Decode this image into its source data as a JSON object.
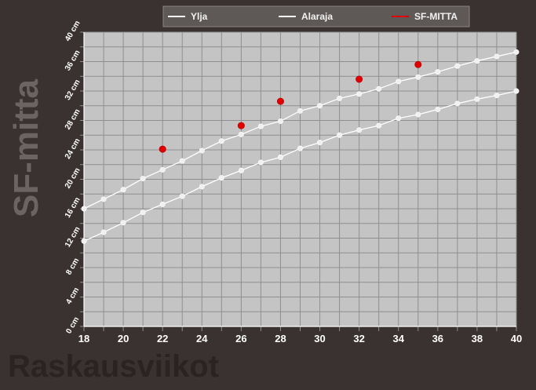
{
  "chart_data": {
    "type": "line",
    "ylabel": "SF-mitta",
    "xlabel": "Raskausviikot",
    "xlim": [
      18,
      40
    ],
    "ylim": [
      0,
      40
    ],
    "x_ticks": [
      "18",
      "20",
      "22",
      "24",
      "26",
      "28",
      "30",
      "32",
      "34",
      "36",
      "38",
      "40"
    ],
    "y_ticks": [
      "0 cm",
      "4 cm",
      "8 cm",
      "12 cm",
      "16 cm",
      "20 cm",
      "24 cm",
      "28 cm",
      "32 cm",
      "36 cm",
      "40 cm"
    ],
    "grid": true,
    "legend_position": "top",
    "background_color": "#c4c4c4",
    "series": [
      {
        "name": "Ylja",
        "color": "#ffffff",
        "markers": true,
        "x": [
          18,
          19,
          20,
          21,
          22,
          23,
          24,
          25,
          26,
          27,
          28,
          29,
          30,
          31,
          32,
          33,
          34,
          35,
          36,
          37,
          38,
          39,
          40
        ],
        "values": [
          16.0,
          17.3,
          18.6,
          20.1,
          21.3,
          22.5,
          23.9,
          25.2,
          26.1,
          27.2,
          27.9,
          29.3,
          30.0,
          31.0,
          31.6,
          32.3,
          33.3,
          33.9,
          34.6,
          35.4,
          36.1,
          36.7,
          37.3
        ]
      },
      {
        "name": "Alaraja",
        "color": "#ffffff",
        "markers": true,
        "x": [
          18,
          19,
          20,
          21,
          22,
          23,
          24,
          25,
          26,
          27,
          28,
          29,
          30,
          31,
          32,
          33,
          34,
          35,
          36,
          37,
          38,
          39,
          40
        ],
        "values": [
          11.6,
          12.8,
          14.1,
          15.5,
          16.6,
          17.7,
          19.0,
          20.2,
          21.2,
          22.3,
          23.0,
          24.2,
          25.0,
          26.0,
          26.7,
          27.3,
          28.3,
          28.8,
          29.5,
          30.3,
          30.9,
          31.4,
          32.0
        ]
      },
      {
        "name": "SF-MITTA",
        "color": "#e00000",
        "markers": true,
        "line": false,
        "x": [
          22,
          26,
          28,
          32,
          35
        ],
        "values": [
          24.1,
          27.3,
          30.6,
          33.6,
          35.6
        ]
      }
    ]
  }
}
